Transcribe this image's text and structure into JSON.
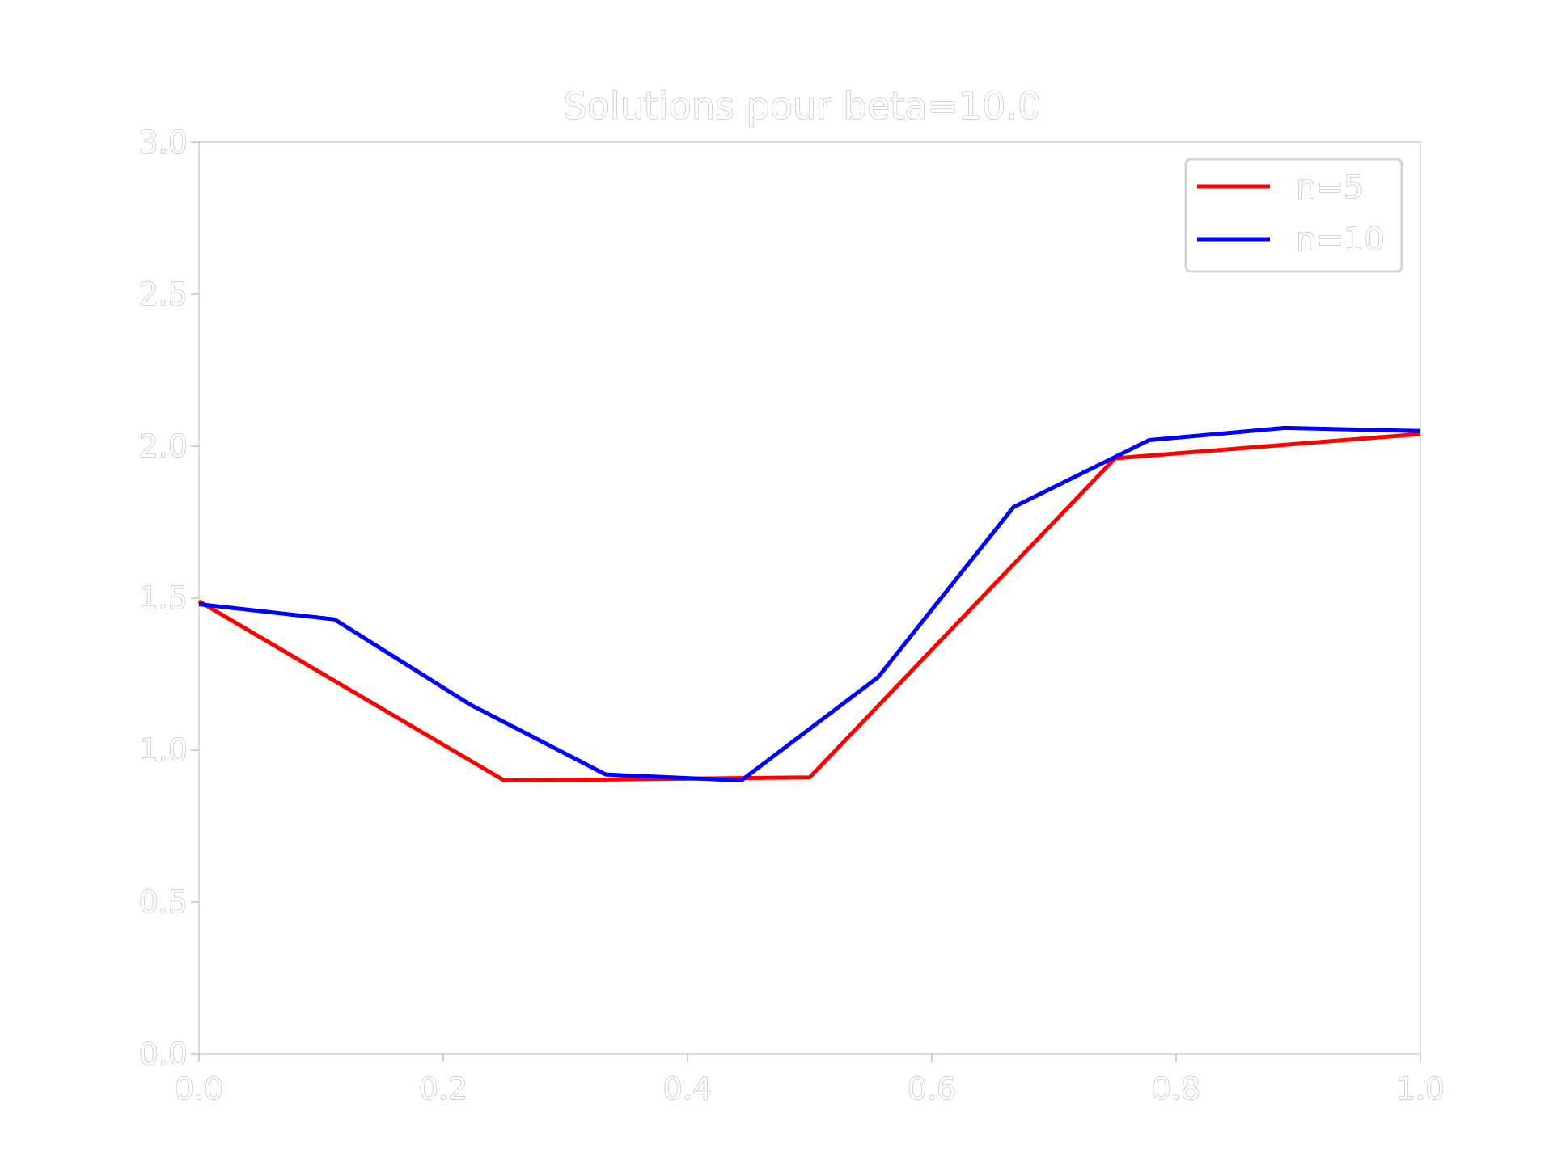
{
  "chart_data": {
    "type": "line",
    "title": "Solutions pour beta=10.0",
    "xlabel": "",
    "ylabel": "",
    "xlim": [
      0.0,
      1.0
    ],
    "ylim": [
      0.0,
      3.0
    ],
    "x_ticks": [
      "0.0",
      "0.2",
      "0.4",
      "0.6",
      "0.8",
      "1.0"
    ],
    "y_ticks": [
      "0.0",
      "0.5",
      "1.0",
      "1.5",
      "2.0",
      "2.5",
      "3.0"
    ],
    "grid": false,
    "legend_position": "top-right",
    "series": [
      {
        "name": "n=5",
        "color": "#ff0000",
        "x": [
          0.0,
          0.25,
          0.5,
          0.75,
          1.0
        ],
        "y": [
          1.49,
          0.9,
          0.91,
          1.96,
          2.04
        ]
      },
      {
        "name": "n=10",
        "color": "#0000ff",
        "x": [
          0.0,
          0.111,
          0.222,
          0.333,
          0.444,
          0.556,
          0.667,
          0.778,
          0.889,
          1.0
        ],
        "y": [
          1.48,
          1.43,
          1.15,
          0.92,
          0.9,
          1.24,
          1.8,
          2.02,
          2.06,
          2.05
        ]
      }
    ]
  }
}
